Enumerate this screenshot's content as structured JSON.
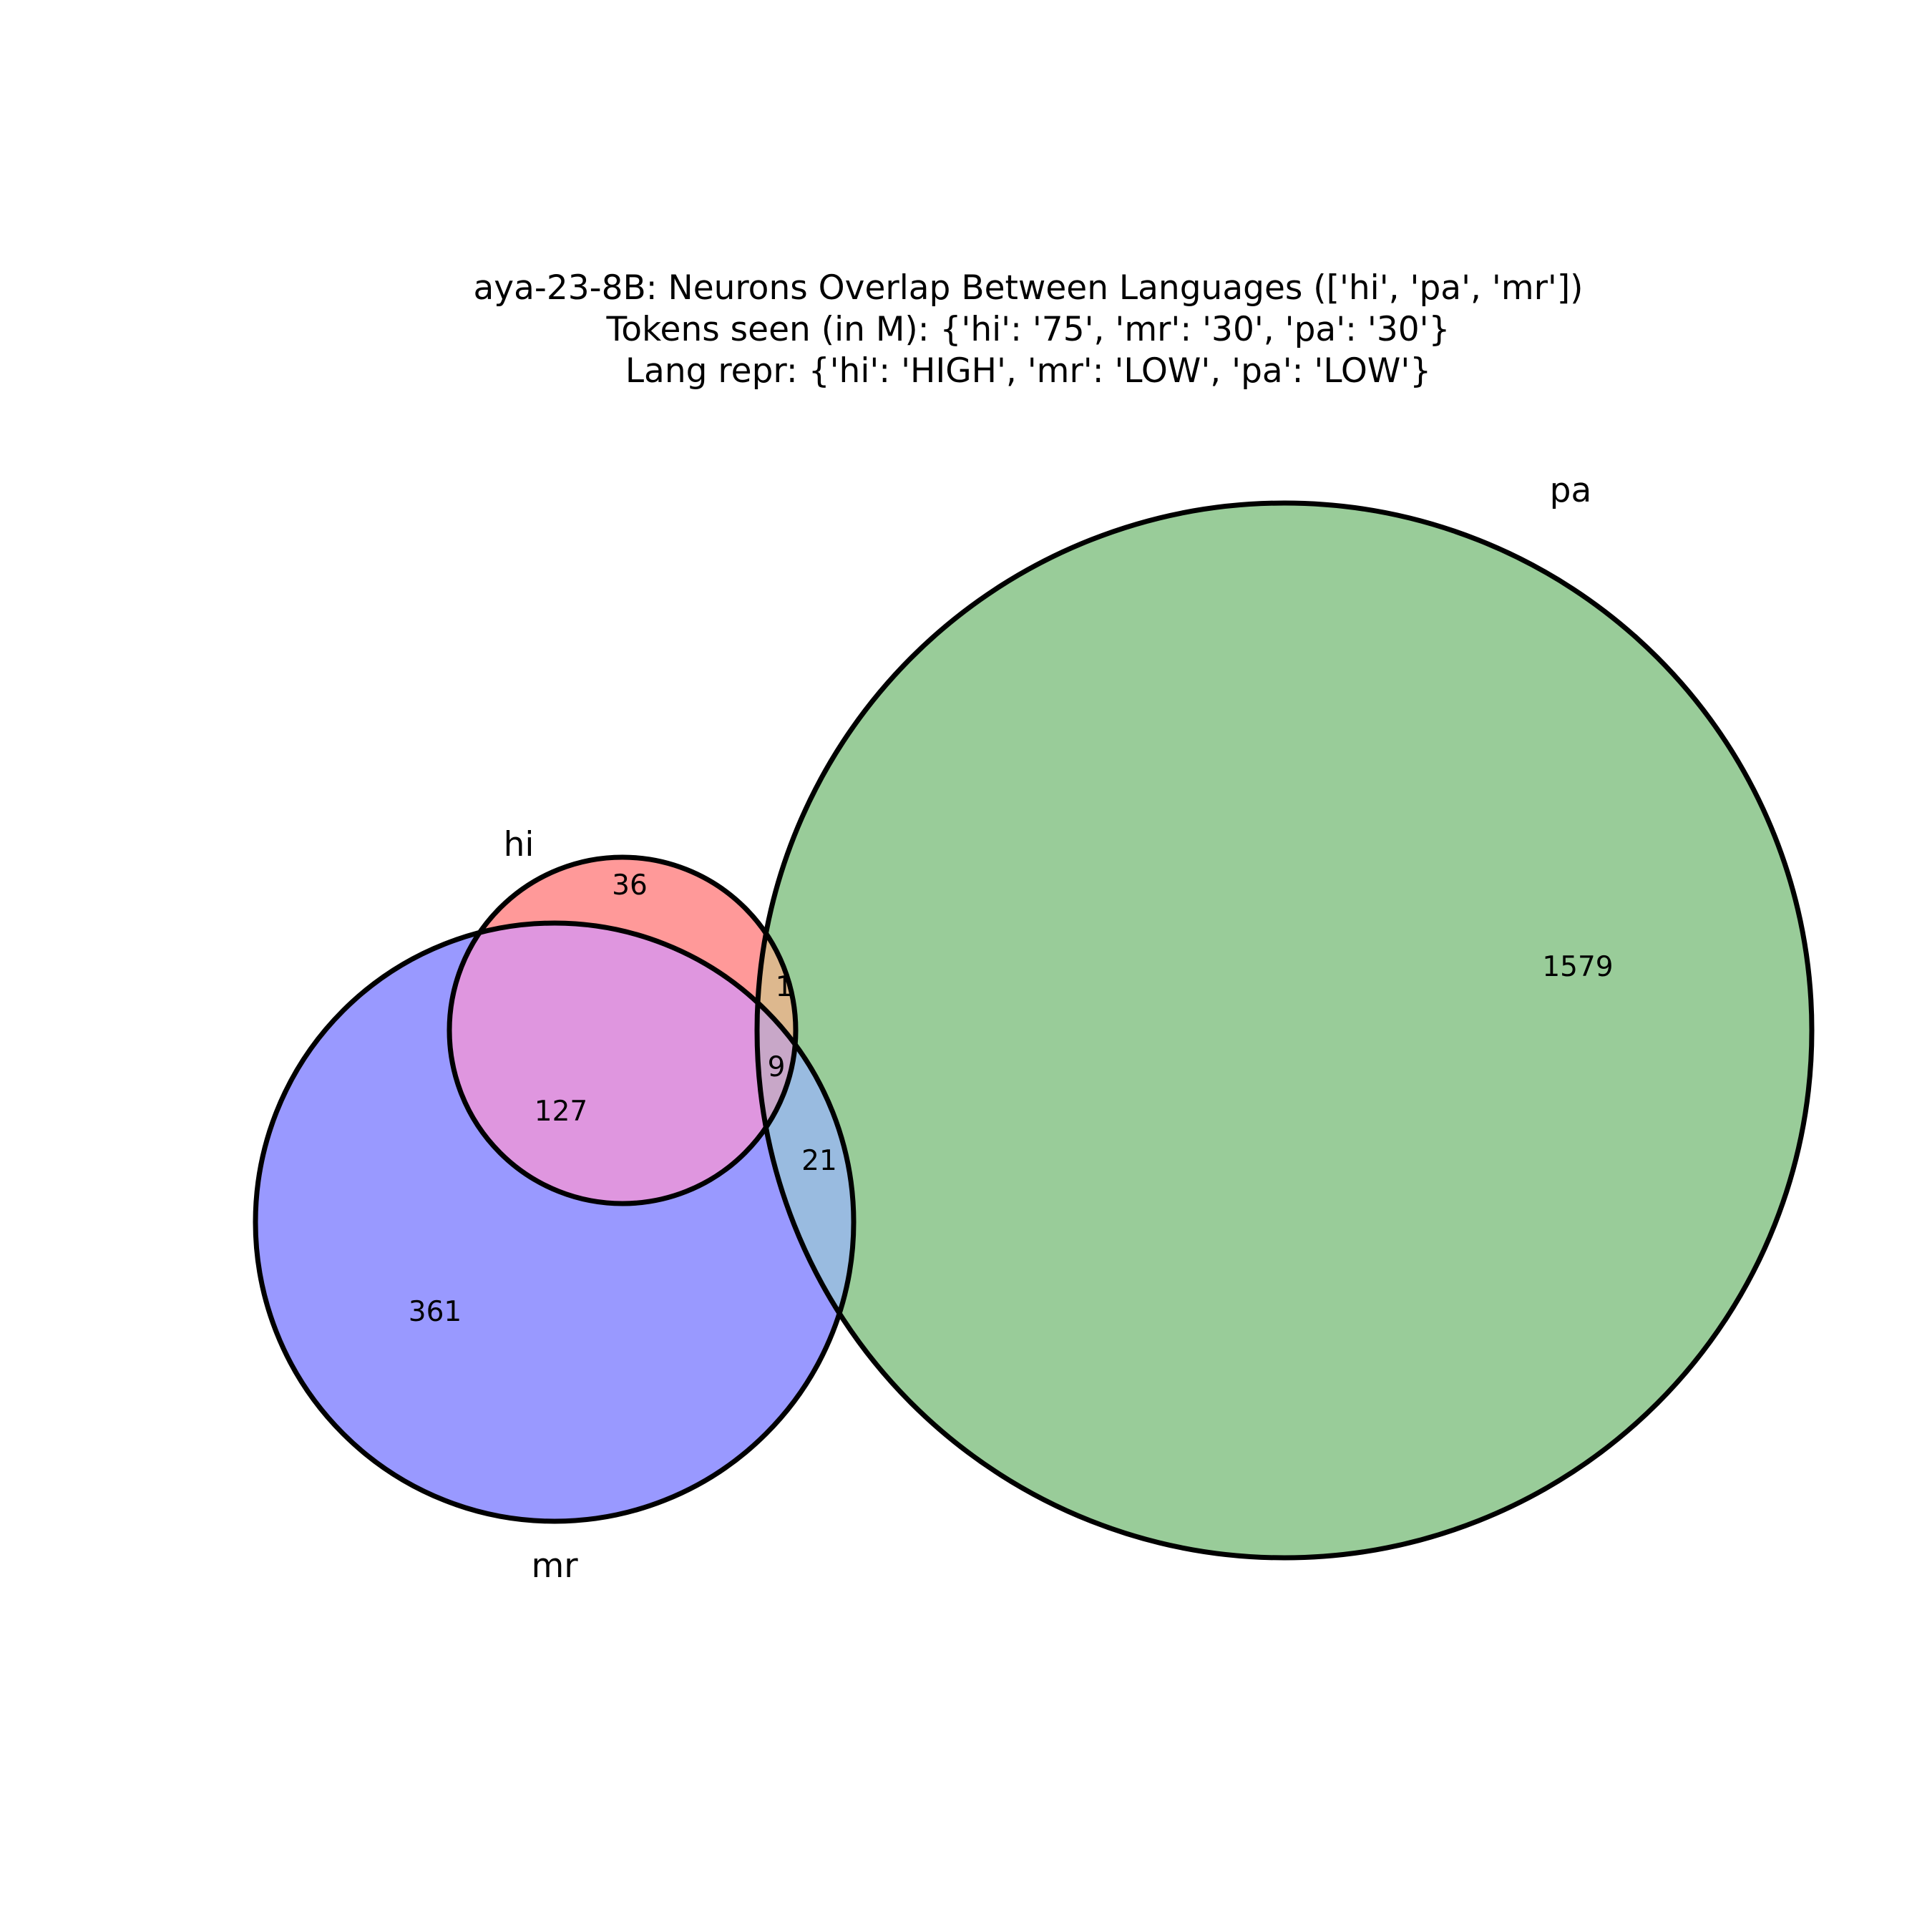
{
  "title": [
    "aya-23-8B: Neurons Overlap Between Languages (['hi', 'pa', 'mr'])",
    "Tokens seen (in M): {'hi': '75', 'mr': '30', 'pa': '30'}",
    "Lang repr: {'hi': 'HIGH', 'mr': 'LOW', 'pa': 'LOW'}"
  ],
  "sets": {
    "hi": {
      "label": "hi",
      "color": "#ff0000"
    },
    "pa": {
      "label": "pa",
      "color": "#008000"
    },
    "mr": {
      "label": "mr",
      "color": "#0000ff"
    }
  },
  "regions": {
    "hi_only": "36",
    "hi_pa": "1",
    "hi_pa_mr": "9",
    "hi_mr": "127",
    "pa_mr": "21",
    "mr_only": "361",
    "pa_only": "1579"
  }
}
